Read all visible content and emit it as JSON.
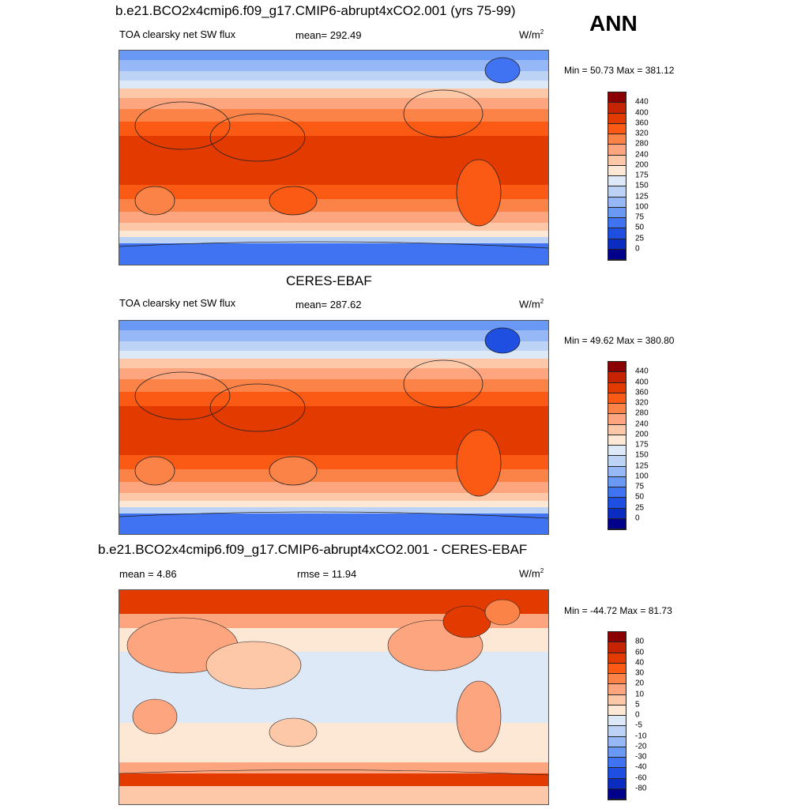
{
  "season": "ANN",
  "panels": [
    {
      "title": "b.e21.BCO2x4cmip6.f09_g17.CMIP6-abrupt4xCO2.001 (yrs 75-99)",
      "left_label": "TOA clearsky net SW flux",
      "center_label": "mean= 292.49",
      "units": "W/m",
      "units_sup": "2",
      "minmax": "Min =  50.73 Max = 381.12",
      "colorbar_labels": [
        "440",
        "400",
        "360",
        "320",
        "280",
        "240",
        "200",
        "175",
        "150",
        "125",
        "100",
        "75",
        "50",
        "25",
        "0"
      ],
      "colorbar_colors": [
        "#8b0000",
        "#c62400",
        "#e33a00",
        "#fa5a14",
        "#fb8347",
        "#fca57f",
        "#fdc8a8",
        "#fde8d6",
        "#dde9f7",
        "#bcd3f5",
        "#97b8f6",
        "#6a98f5",
        "#3f73f1",
        "#1f4fe0",
        "#0a2cc0",
        "#00008b"
      ]
    },
    {
      "title": "CERES-EBAF",
      "left_label": "TOA clearsky net SW flux",
      "center_label": "mean= 287.62",
      "units": "W/m",
      "units_sup": "2",
      "minmax": "Min =  49.62 Max = 380.80",
      "colorbar_labels": [
        "440",
        "400",
        "360",
        "320",
        "280",
        "240",
        "200",
        "175",
        "150",
        "125",
        "100",
        "75",
        "50",
        "25",
        "0"
      ],
      "colorbar_colors": [
        "#8b0000",
        "#c62400",
        "#e33a00",
        "#fa5a14",
        "#fb8347",
        "#fca57f",
        "#fdc8a8",
        "#fde8d6",
        "#dde9f7",
        "#bcd3f5",
        "#97b8f6",
        "#6a98f5",
        "#3f73f1",
        "#1f4fe0",
        "#0a2cc0",
        "#00008b"
      ]
    },
    {
      "title": "b.e21.BCO2x4cmip6.f09_g17.CMIP6-abrupt4xCO2.001 - CERES-EBAF",
      "left_label": "mean =   4.86",
      "center_label": "rmse =  11.94",
      "units": "W/m",
      "units_sup": "2",
      "minmax": "Min = -44.72 Max =  81.73",
      "colorbar_labels": [
        "80",
        "60",
        "40",
        "30",
        "20",
        "10",
        "5",
        "0",
        "-5",
        "-10",
        "-20",
        "-30",
        "-40",
        "-60",
        "-80"
      ],
      "colorbar_colors": [
        "#8b0000",
        "#c62400",
        "#e33a00",
        "#fa5a14",
        "#fb8347",
        "#fca57f",
        "#fdc8a8",
        "#fde8d6",
        "#dde9f7",
        "#bcd3f5",
        "#97b8f6",
        "#6a98f5",
        "#3f73f1",
        "#1f4fe0",
        "#0a2cc0",
        "#00008b"
      ]
    }
  ]
}
